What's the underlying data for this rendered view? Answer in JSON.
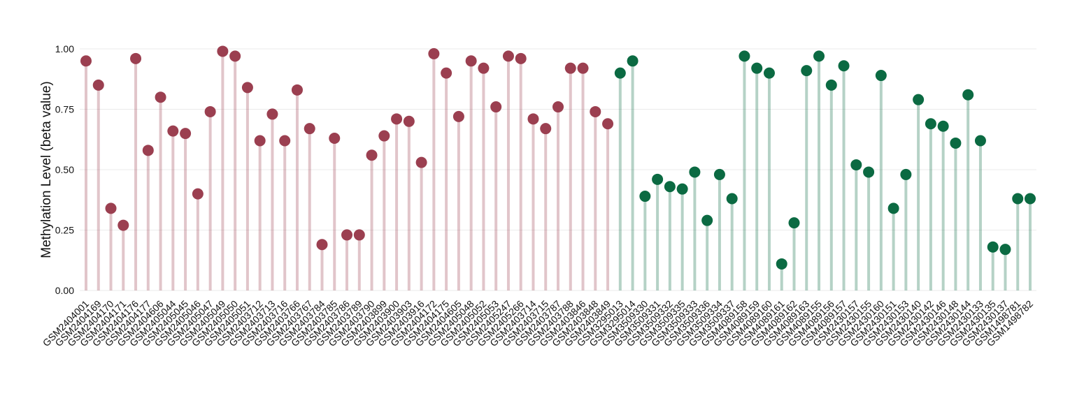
{
  "chart_data": {
    "type": "lollipop",
    "y_label": "Methylation Level (beta value)",
    "categories": [
      "GSM2404001",
      "GSM2404169",
      "GSM2404170",
      "GSM2404171",
      "GSM2404176",
      "GSM2404177",
      "GSM2404606",
      "GSM2405044",
      "GSM2405045",
      "GSM2405046",
      "GSM2405047",
      "GSM2405049",
      "GSM2405050",
      "GSM2405051",
      "GSM2403712",
      "GSM2403713",
      "GSM2403716",
      "GSM2403766",
      "GSM2403767",
      "GSM2403784",
      "GSM2403785",
      "GSM2403786",
      "GSM2403789",
      "GSM2403790",
      "GSM2403899",
      "GSM2403900",
      "GSM2403903",
      "GSM2403916",
      "GSM2404172",
      "GSM2404175",
      "GSM2404605",
      "GSM2405048",
      "GSM2405052",
      "GSM2405053",
      "GSM2405247",
      "GSM2405266",
      "GSM2403714",
      "GSM2403715",
      "GSM2403787",
      "GSM2403788",
      "GSM2403846",
      "GSM2403848",
      "GSM2403849",
      "GSM3295013",
      "GSM3295014",
      "GSM3509330",
      "GSM3509331",
      "GSM3509332",
      "GSM3509335",
      "GSM3509333",
      "GSM3509336",
      "GSM3509334",
      "GSM3509337",
      "GSM4089158",
      "GSM4089159",
      "GSM4089160",
      "GSM4089161",
      "GSM4089162",
      "GSM4089163",
      "GSM4089155",
      "GSM4089156",
      "GSM4089157",
      "GSM2430157",
      "GSM2430155",
      "GSM2430160",
      "GSM2430151",
      "GSM2430153",
      "GSM2430140",
      "GSM2430142",
      "GSM2430146",
      "GSM2430148",
      "GSM2430144",
      "GSM2430133",
      "GSM2430135",
      "GSM2430137",
      "GSM1498781",
      "GSM1498782"
    ],
    "values": [
      0.95,
      0.85,
      0.34,
      0.27,
      0.96,
      0.58,
      0.8,
      0.66,
      0.65,
      0.4,
      0.74,
      0.99,
      0.97,
      0.84,
      0.62,
      0.73,
      0.62,
      0.83,
      0.67,
      0.19,
      0.63,
      0.23,
      0.23,
      0.56,
      0.64,
      0.71,
      0.7,
      0.53,
      0.98,
      0.9,
      0.72,
      0.95,
      0.92,
      0.76,
      0.97,
      0.96,
      0.71,
      0.67,
      0.76,
      0.92,
      0.92,
      0.74,
      0.69,
      0.9,
      0.95,
      0.39,
      0.46,
      0.43,
      0.42,
      0.49,
      0.29,
      0.48,
      0.38,
      0.97,
      0.92,
      0.9,
      0.11,
      0.28,
      0.91,
      0.97,
      0.85,
      0.93,
      0.52,
      0.49,
      0.89,
      0.34,
      0.48,
      0.79,
      0.69,
      0.68,
      0.61,
      0.81,
      0.62,
      0.18,
      0.17,
      0.38,
      0.38
    ],
    "colors": [
      "#9b3f50",
      "#9b3f50",
      "#9b3f50",
      "#9b3f50",
      "#9b3f50",
      "#9b3f50",
      "#9b3f50",
      "#9b3f50",
      "#9b3f50",
      "#9b3f50",
      "#9b3f50",
      "#9b3f50",
      "#9b3f50",
      "#9b3f50",
      "#9b3f50",
      "#9b3f50",
      "#9b3f50",
      "#9b3f50",
      "#9b3f50",
      "#9b3f50",
      "#9b3f50",
      "#9b3f50",
      "#9b3f50",
      "#9b3f50",
      "#9b3f50",
      "#9b3f50",
      "#9b3f50",
      "#9b3f50",
      "#9b3f50",
      "#9b3f50",
      "#9b3f50",
      "#9b3f50",
      "#9b3f50",
      "#9b3f50",
      "#9b3f50",
      "#9b3f50",
      "#9b3f50",
      "#9b3f50",
      "#9b3f50",
      "#9b3f50",
      "#9b3f50",
      "#9b3f50",
      "#9b3f50",
      "#0b6a42",
      "#0b6a42",
      "#0b6a42",
      "#0b6a42",
      "#0b6a42",
      "#0b6a42",
      "#0b6a42",
      "#0b6a42",
      "#0b6a42",
      "#0b6a42",
      "#0b6a42",
      "#0b6a42",
      "#0b6a42",
      "#0b6a42",
      "#0b6a42",
      "#0b6a42",
      "#0b6a42",
      "#0b6a42",
      "#0b6a42",
      "#0b6a42",
      "#0b6a42",
      "#0b6a42",
      "#0b6a42",
      "#0b6a42",
      "#0b6a42",
      "#0b6a42",
      "#0b6a42",
      "#0b6a42",
      "#0b6a42",
      "#0b6a42",
      "#0b6a42",
      "#0b6a42",
      "#0b6a42",
      "#0b6a42"
    ],
    "ylim": [
      0,
      1.0
    ],
    "yticks": [
      {
        "value": 0,
        "label": "0.00"
      },
      {
        "value": 0.25,
        "label": "0.25"
      },
      {
        "value": 0.5,
        "label": "0.50"
      },
      {
        "value": 0.75,
        "label": "0.75"
      },
      {
        "value": 1.0,
        "label": "1.00"
      }
    ],
    "grid": true
  }
}
